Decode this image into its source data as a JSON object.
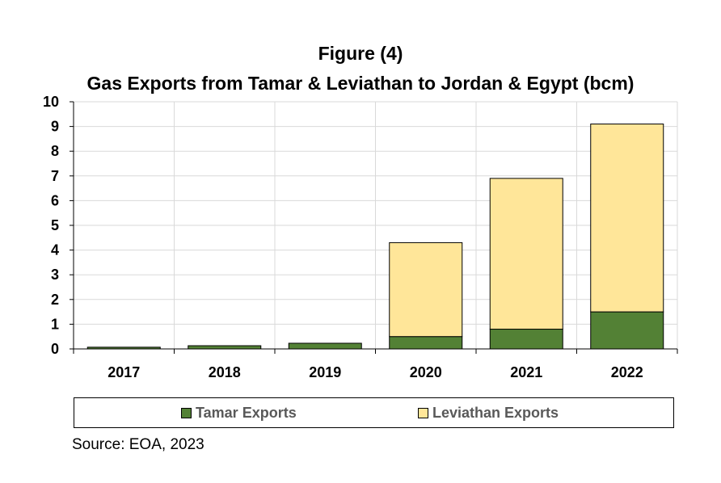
{
  "title": "Figure (4)",
  "subtitle": "Gas Exports from Tamar & Leviathan to Jordan & Egypt (bcm)",
  "source": "Source: EOA, 2023",
  "colors": {
    "tamar": "#538135",
    "leviathan": "#FFE699",
    "grid": "#D9D9D9",
    "axis": "#000000"
  },
  "chart_data": {
    "type": "bar",
    "stacked": true,
    "title": "Figure (4)",
    "subtitle": "Gas Exports from Tamar & Leviathan to Jordan & Egypt (bcm)",
    "categories": [
      "2017",
      "2018",
      "2019",
      "2020",
      "2021",
      "2022"
    ],
    "series": [
      {
        "name": "Tamar Exports",
        "values": [
          0.07,
          0.13,
          0.23,
          0.5,
          0.8,
          1.5
        ]
      },
      {
        "name": "Leviathan Exports",
        "values": [
          0,
          0,
          0,
          3.8,
          6.1,
          7.6
        ]
      }
    ],
    "ylim": [
      0,
      10
    ],
    "yticks": [
      "0",
      "1",
      "2",
      "3",
      "4",
      "5",
      "6",
      "7",
      "8",
      "9",
      "10"
    ],
    "grid": true,
    "legend": "bottom"
  }
}
